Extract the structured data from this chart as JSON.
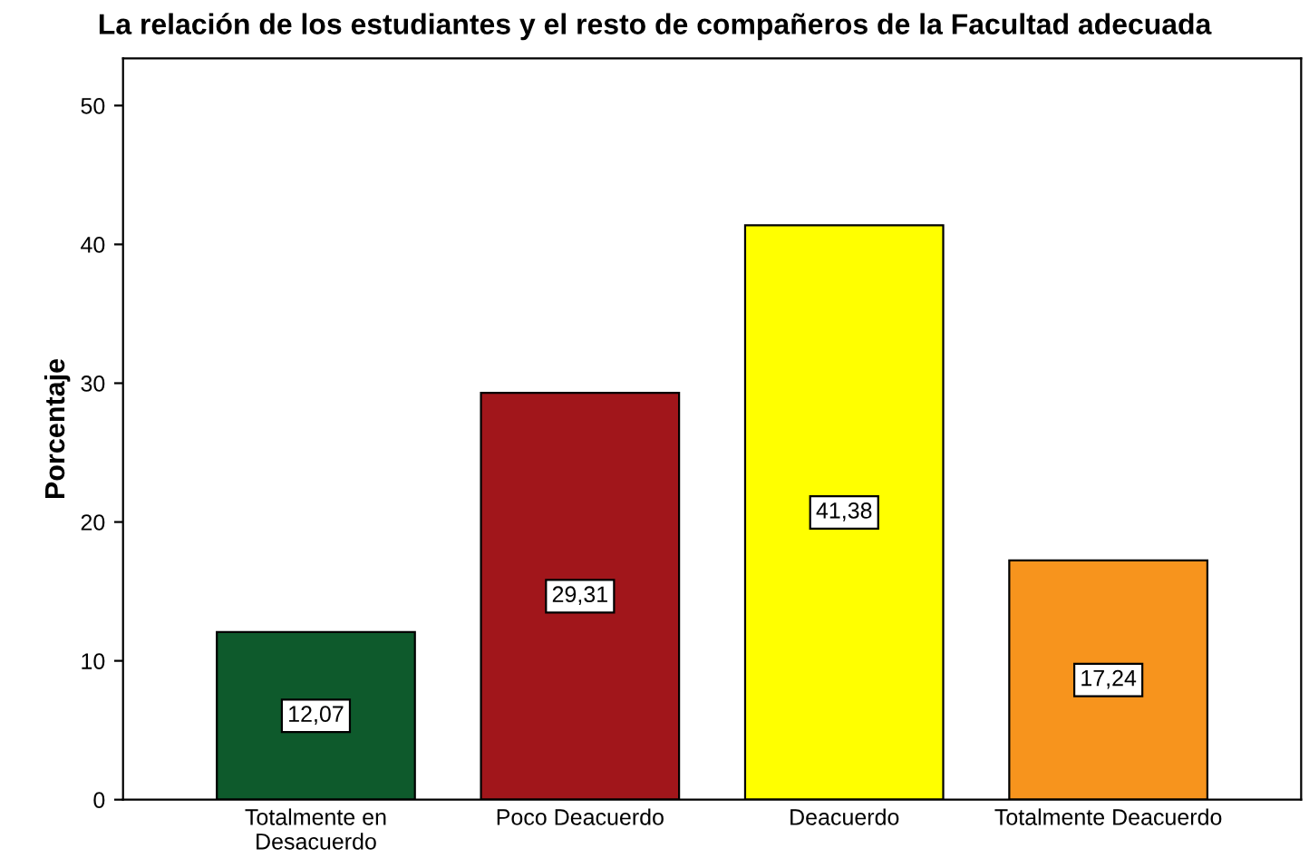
{
  "chart_data": {
    "type": "bar",
    "title": "La relación de los estudiantes y el resto de compañeros de la Facultad adecuada",
    "ylabel": "Porcentaje",
    "categories": [
      "Totalmente en\nDesacuerdo",
      "Poco Deacuerdo",
      "Deacuerdo",
      "Totalmente Deacuerdo"
    ],
    "values": [
      12.07,
      29.31,
      41.38,
      17.24
    ],
    "value_labels": [
      "12,07",
      "29,31",
      "41,38",
      "17,24"
    ],
    "colors": [
      "#0e5a2c",
      "#a1161b",
      "#ffff00",
      "#f7941d"
    ],
    "ylim": [
      0,
      53.4
    ],
    "yticks": [
      0,
      10,
      20,
      30,
      40,
      50
    ],
    "grid": false,
    "legend": false
  }
}
